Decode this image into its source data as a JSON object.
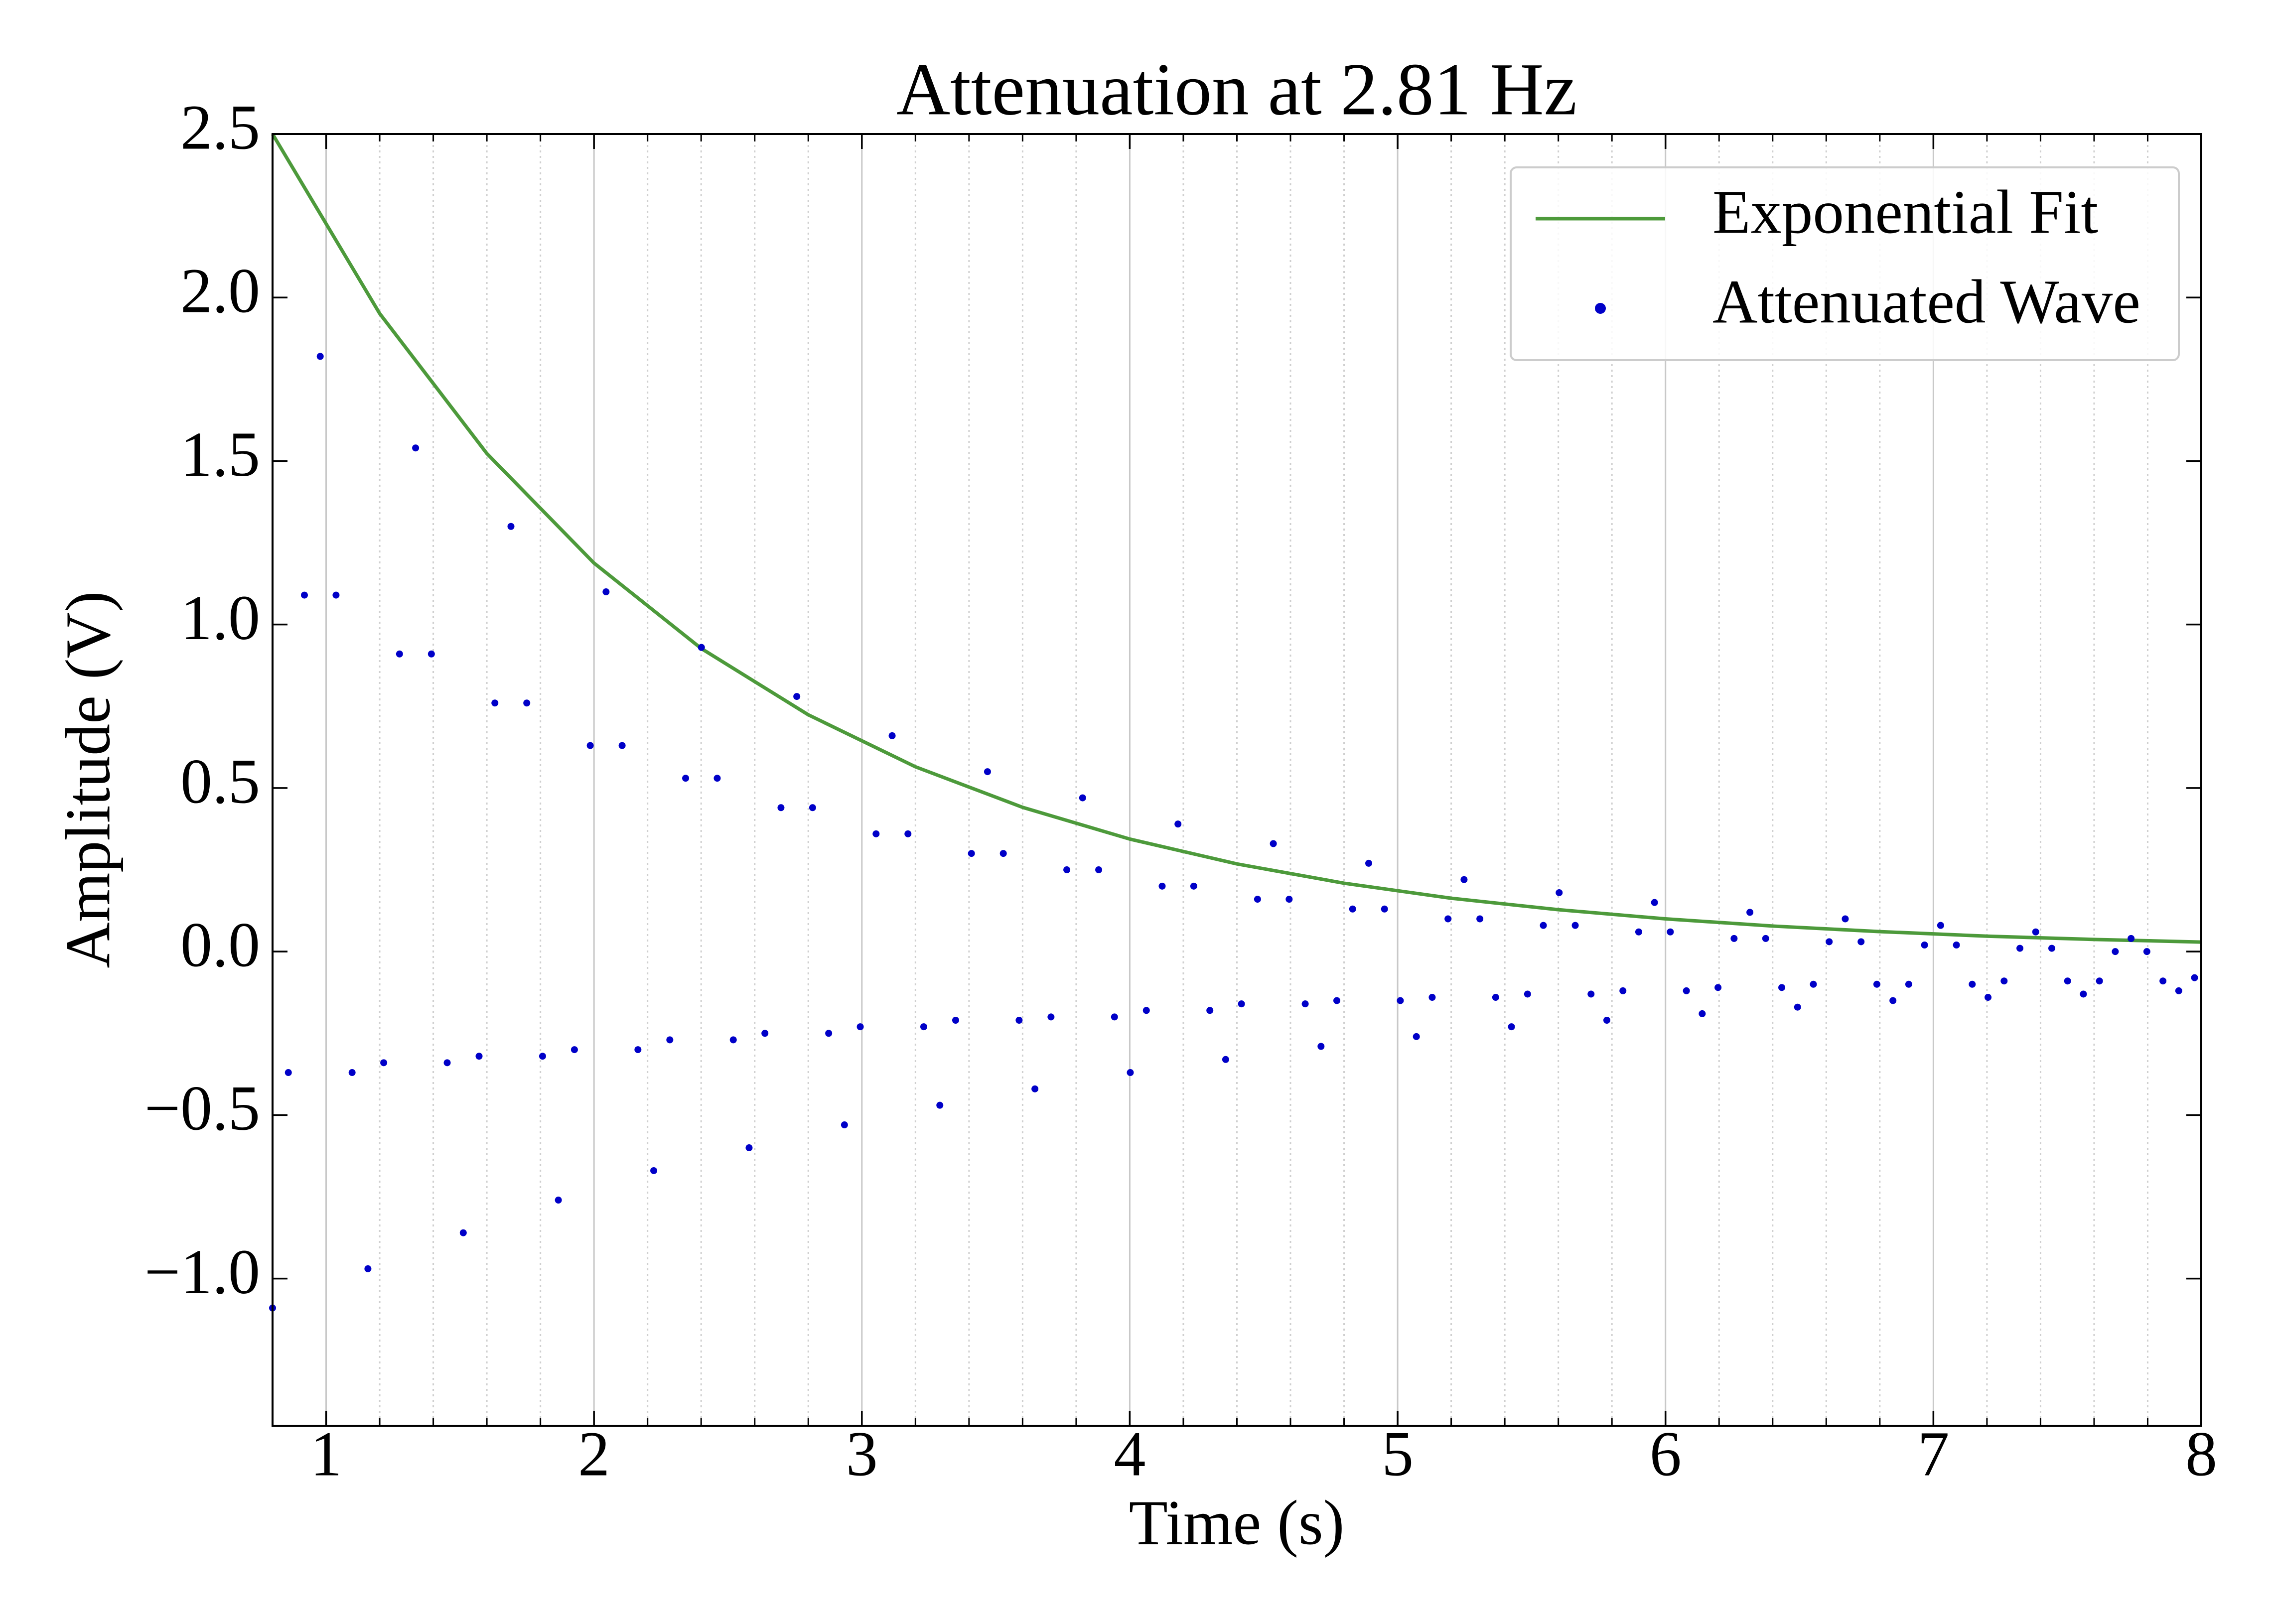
{
  "chart_data": {
    "type": "line",
    "title": "Attenuation at 2.81 Hz",
    "x_label": "Time (s)",
    "y_label": "Amplitude (V)",
    "xlim": [
      0.8,
      8
    ],
    "ylim": [
      -1.45,
      2.5
    ],
    "xticks": [
      1,
      2,
      3,
      4,
      5,
      6,
      7,
      8
    ],
    "xminorticks": [
      1.2,
      1.4,
      1.6,
      1.8,
      2.2,
      2.4,
      2.6,
      2.8,
      3.2,
      3.4,
      3.6,
      3.8,
      4.2,
      4.4,
      4.6,
      4.8,
      5.2,
      5.4,
      5.6,
      5.8,
      6.2,
      6.4,
      6.6,
      6.8,
      7.2,
      7.4,
      7.6,
      7.8
    ],
    "yticks": [
      {
        "value": -1,
        "label": "−1.0"
      },
      {
        "value": -0.5,
        "label": "−0.5"
      },
      {
        "value": 0,
        "label": "0.0"
      },
      0.5,
      {
        "value": 1,
        "label": "1.0"
      },
      1.5,
      {
        "value": 2,
        "label": "2.0"
      },
      2.5
    ],
    "grid": true,
    "legend": "upper right",
    "series": [
      {
        "name": "Exponential Fit",
        "type": "line",
        "color": "#4d9a3b",
        "x": [
          0.8,
          1.2,
          1.6,
          2.0,
          2.4,
          2.8,
          3.2,
          3.6,
          4.0,
          4.4,
          4.8,
          5.2,
          5.6,
          6.0,
          6.4,
          6.8,
          7.2,
          7.6,
          8.0
        ],
        "values": [
          2.5,
          1.951,
          1.523,
          1.188,
          0.927,
          0.724,
          0.565,
          0.441,
          0.344,
          0.268,
          0.209,
          0.163,
          0.128,
          0.1,
          0.078,
          0.061,
          0.047,
          0.037,
          0.029
        ]
      },
      {
        "name": "Attenuated Wave",
        "type": "scatter",
        "color": "#0000c8",
        "x": [
          0.8,
          0.859,
          0.919,
          0.978,
          1.037,
          1.097,
          1.156,
          1.215,
          1.274,
          1.334,
          1.393,
          1.452,
          1.512,
          1.571,
          1.63,
          1.69,
          1.749,
          1.808,
          1.867,
          1.927,
          1.986,
          2.045,
          2.105,
          2.164,
          2.223,
          2.283,
          2.342,
          2.401,
          2.46,
          2.52,
          2.579,
          2.638,
          2.698,
          2.757,
          2.816,
          2.876,
          2.935,
          2.994,
          3.053,
          3.113,
          3.172,
          3.231,
          3.291,
          3.35,
          3.409,
          3.469,
          3.528,
          3.587,
          3.646,
          3.706,
          3.765,
          3.824,
          3.884,
          3.943,
          4.002,
          4.062,
          4.121,
          4.18,
          4.239,
          4.299,
          4.358,
          4.417,
          4.477,
          4.536,
          4.595,
          4.655,
          4.714,
          4.773,
          4.832,
          4.892,
          4.951,
          5.01,
          5.07,
          5.129,
          5.188,
          5.248,
          5.307,
          5.366,
          5.425,
          5.485,
          5.544,
          5.603,
          5.663,
          5.722,
          5.781,
          5.841,
          5.9,
          5.959,
          6.018,
          6.078,
          6.137,
          6.196,
          6.256,
          6.315,
          6.374,
          6.434,
          6.493,
          6.552,
          6.611,
          6.671,
          6.73,
          6.789,
          6.849,
          6.908,
          6.967,
          7.027,
          7.086,
          7.145,
          7.204,
          7.264,
          7.323,
          7.382,
          7.442,
          7.501,
          7.56,
          7.62,
          7.679,
          7.738,
          7.797,
          7.857,
          7.916,
          7.975
        ],
        "values": [
          -1.09,
          -0.37,
          1.09,
          1.82,
          1.09,
          -0.37,
          -0.97,
          -0.34,
          0.91,
          1.54,
          0.91,
          -0.34,
          -0.86,
          -0.32,
          0.76,
          1.3,
          0.76,
          -0.32,
          -0.76,
          -0.3,
          0.63,
          1.1,
          0.63,
          -0.3,
          -0.67,
          -0.27,
          0.53,
          0.93,
          0.53,
          -0.27,
          -0.6,
          -0.25,
          0.44,
          0.78,
          0.44,
          -0.25,
          -0.53,
          -0.23,
          0.36,
          0.66,
          0.36,
          -0.23,
          -0.47,
          -0.21,
          0.3,
          0.55,
          0.3,
          -0.21,
          -0.42,
          -0.2,
          0.25,
          0.47,
          0.25,
          -0.2,
          -0.37,
          -0.18,
          0.2,
          0.39,
          0.2,
          -0.18,
          -0.33,
          -0.16,
          0.16,
          0.33,
          0.16,
          -0.16,
          -0.29,
          -0.15,
          0.13,
          0.27,
          0.13,
          -0.15,
          -0.26,
          -0.14,
          0.1,
          0.22,
          0.1,
          -0.14,
          -0.23,
          -0.13,
          0.08,
          0.18,
          0.08,
          -0.13,
          -0.21,
          -0.12,
          0.06,
          0.15,
          0.06,
          -0.12,
          -0.19,
          -0.11,
          0.04,
          0.12,
          0.04,
          -0.11,
          -0.17,
          -0.1,
          0.03,
          0.1,
          0.03,
          -0.1,
          -0.15,
          -0.1,
          0.02,
          0.08,
          0.02,
          -0.1,
          -0.14,
          -0.09,
          0.01,
          0.06,
          0.01,
          -0.09,
          -0.13,
          -0.09,
          0.0,
          0.04,
          0.0,
          -0.09,
          -0.12,
          -0.08
        ]
      }
    ]
  }
}
